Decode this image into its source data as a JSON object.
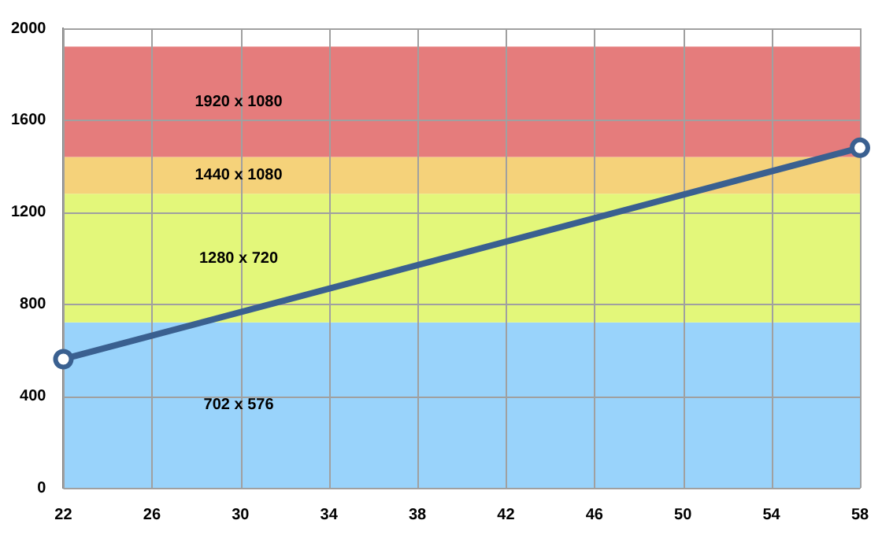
{
  "chart_data": {
    "type": "line",
    "x": [
      22,
      58
    ],
    "values": [
      560,
      1480
    ],
    "color": "#3a6090",
    "marker": "circle",
    "line_style": "solid",
    "xlim": [
      22,
      58
    ],
    "xticks": [
      22,
      26,
      30,
      34,
      38,
      42,
      46,
      50,
      54,
      58
    ],
    "ylim": [
      0,
      2000
    ],
    "yticks": [
      0,
      400,
      800,
      1200,
      1600,
      2000
    ],
    "grid": true,
    "legend": false,
    "bands": [
      {
        "axis": "y",
        "from": 0,
        "to": 720,
        "label": "702 x 576",
        "color": "#99d3fb"
      },
      {
        "axis": "y",
        "from": 720,
        "to": 1280,
        "label": "1280 x 720",
        "color": "#e3f77a"
      },
      {
        "axis": "y",
        "from": 1280,
        "to": 1440,
        "label": "1440 x 1080",
        "color": "#f5d27a"
      },
      {
        "axis": "y",
        "from": 1440,
        "to": 1920,
        "label": "1920 x 1080",
        "color": "#e57c7c"
      }
    ]
  }
}
